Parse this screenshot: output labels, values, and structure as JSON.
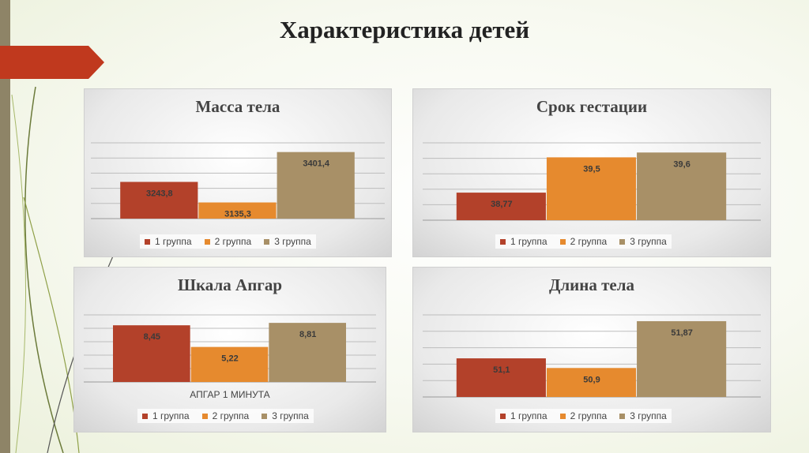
{
  "slide": {
    "title": "Характеристика детей"
  },
  "legend_labels": [
    "1 группа",
    "2 группа",
    "3 группа"
  ],
  "colors": {
    "g1": "#b3412a",
    "g2": "#e68a2e",
    "g3": "#a89067"
  },
  "chart_data": [
    {
      "type": "bar",
      "title": "Масса тела",
      "categories": [
        "1 группа",
        "2 группа",
        "3 группа"
      ],
      "values": [
        3243.8,
        3135.3,
        3401.4
      ],
      "value_labels": [
        "3243,8",
        "3135,3",
        "3401,4"
      ],
      "ylim": [
        3050,
        3450
      ],
      "grid": true,
      "legend": "bottom"
    },
    {
      "type": "bar",
      "title": "Срок гестации",
      "categories": [
        "1 группа",
        "2 группа",
        "3 группа"
      ],
      "values": [
        38.77,
        39.5,
        39.6
      ],
      "value_labels": [
        "38,77",
        "39,5",
        "39,6"
      ],
      "ylim": [
        38.2,
        39.8
      ],
      "grid": true,
      "legend": "bottom"
    },
    {
      "type": "bar",
      "title": "Шкала Апгар",
      "categories": [
        "1 группа",
        "2 группа",
        "3 группа"
      ],
      "values": [
        8.45,
        5.22,
        8.81
      ],
      "value_labels": [
        "8,45",
        "5,22",
        "8,81"
      ],
      "xlabel": "АПГАР 1 МИНУТА",
      "ylim": [
        0,
        10
      ],
      "grid": true,
      "legend": "bottom"
    },
    {
      "type": "bar",
      "title": "Длина тела",
      "categories": [
        "1 группа",
        "2 группа",
        "3 группа"
      ],
      "values": [
        51.1,
        50.9,
        51.87
      ],
      "value_labels": [
        "51,1",
        "50,9",
        "51,87"
      ],
      "ylim": [
        50.3,
        52.0
      ],
      "grid": true,
      "legend": "bottom"
    }
  ]
}
